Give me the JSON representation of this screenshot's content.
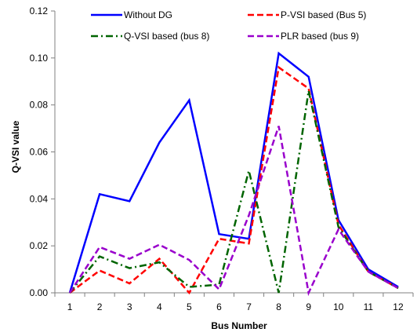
{
  "chart_data": {
    "type": "line",
    "xlabel": "Bus Number",
    "ylabel": "Q-VSI value",
    "categories": [
      "1",
      "2",
      "3",
      "4",
      "5",
      "6",
      "7",
      "8",
      "9",
      "10",
      "11",
      "12"
    ],
    "ylim": [
      0,
      0.12
    ],
    "yticks": [
      "0.00",
      "0.02",
      "0.04",
      "0.06",
      "0.08",
      "0.10",
      "0.12"
    ],
    "grid": false,
    "legend_position": "top",
    "series": [
      {
        "name": "Without DG",
        "color": "#0000ff",
        "dash": "solid",
        "values": [
          0,
          0.042,
          0.039,
          0.064,
          0.082,
          0.025,
          0.023,
          0.102,
          0.092,
          0.031,
          0.01,
          0.0025
        ]
      },
      {
        "name": "P-VSI based (Bus 5)",
        "color": "#ff0000",
        "dash": "dash",
        "values": [
          0,
          0.0095,
          0.004,
          0.0145,
          0.0,
          0.023,
          0.021,
          0.096,
          0.087,
          0.029,
          0.009,
          0.002
        ]
      },
      {
        "name": "Q-VSI based (bus 8)",
        "color": "#006400",
        "dash": "dashdot",
        "values": [
          0,
          0.0155,
          0.0105,
          0.013,
          0.0025,
          0.0035,
          0.052,
          0.0,
          0.086,
          0.028,
          0.009,
          0.002
        ]
      },
      {
        "name": "PLR based  (bus 9)",
        "color": "#9900cc",
        "dash": "dash",
        "values": [
          0,
          0.0195,
          0.0145,
          0.0205,
          0.014,
          0.0015,
          0.033,
          0.071,
          0.0,
          0.027,
          0.009,
          0.002
        ]
      }
    ]
  }
}
